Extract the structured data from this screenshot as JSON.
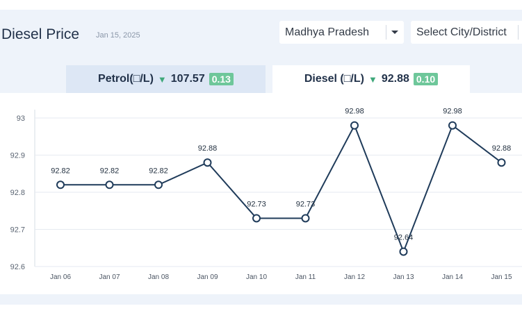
{
  "header": {
    "title": "Diesel Price",
    "date": "Jan 15, 2025"
  },
  "filters": {
    "state": "Madhya Pradesh",
    "city_placeholder": "Select City/District"
  },
  "tabs": [
    {
      "label": "Petrol(□/L)",
      "value": "107.57",
      "change": "0.13",
      "trend": "down"
    },
    {
      "label": "Diesel (□/L)",
      "value": "92.88",
      "change": "0.10",
      "trend": "down"
    }
  ],
  "colors": {
    "accent": "#1f3b5a",
    "change_badge": "#6ec79a",
    "down_arrow": "#3fa87a"
  },
  "chart_data": {
    "type": "line",
    "categories": [
      "Jan 06",
      "Jan 07",
      "Jan 08",
      "Jan 09",
      "Jan 10",
      "Jan 11",
      "Jan 12",
      "Jan 13",
      "Jan 14",
      "Jan 15"
    ],
    "values": [
      92.82,
      92.82,
      92.82,
      92.88,
      92.73,
      92.73,
      92.98,
      92.64,
      92.98,
      92.88
    ],
    "data_labels": [
      "92.82",
      "92.82",
      "92.82",
      "92.88",
      "92.73",
      "92.73",
      "92.98",
      "92.64",
      "92.98",
      "92.88"
    ],
    "yticks": [
      "92.6",
      "92.7",
      "92.8",
      "92.9",
      "93"
    ],
    "ylim": [
      92.6,
      93
    ],
    "grid": true,
    "legend": "none"
  }
}
